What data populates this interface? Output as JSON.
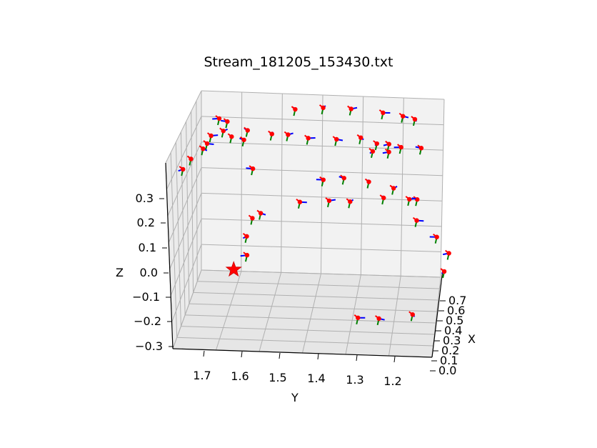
{
  "chart_data": {
    "type": "scatter",
    "projection": "3d",
    "title": "Stream_181205_153430.txt",
    "xlabel": "X",
    "ylabel": "Y",
    "zlabel": "Z",
    "x_ticks": [
      "0.0",
      "0.1",
      "0.2",
      "0.3",
      "0.4",
      "0.5",
      "0.6",
      "0.7"
    ],
    "y_ticks": [
      "1.7",
      "1.6",
      "1.5",
      "1.4",
      "1.3",
      "1.2"
    ],
    "z_ticks": [
      "0.3",
      "0.2",
      "0.1",
      "0.0",
      "−0.1",
      "−0.2",
      "−0.3"
    ],
    "xlim": [
      0.0,
      0.78
    ],
    "ylim": [
      1.15,
      1.77
    ],
    "zlim": [
      -0.3,
      0.38
    ],
    "grid": true,
    "colors": {
      "point": "#ff0000",
      "axis_x": "#ff0000",
      "axis_y": "#008000",
      "axis_z": "#0000ff",
      "start_marker": "#ff0000",
      "grid": "#b0b0b0",
      "pane": "#f2f2f2"
    },
    "start_marker": {
      "symbol": "star",
      "x": 0.0,
      "y": 1.62,
      "z": 0.0
    },
    "points": [
      {
        "x": 0.05,
        "y": 1.33,
        "z": -0.18
      },
      {
        "x": 0.05,
        "y": 1.28,
        "z": -0.18
      },
      {
        "x": 0.05,
        "y": 1.2,
        "z": -0.16
      },
      {
        "x": 0.2,
        "y": 1.13,
        "z": -0.05
      },
      {
        "x": 0.2,
        "y": 1.12,
        "z": 0.02
      },
      {
        "x": 0.2,
        "y": 1.15,
        "z": 0.08
      },
      {
        "x": 0.25,
        "y": 1.2,
        "z": 0.2
      },
      {
        "x": 0.25,
        "y": 1.28,
        "z": 0.2
      },
      {
        "x": 0.25,
        "y": 1.36,
        "z": 0.18
      },
      {
        "x": 0.25,
        "y": 1.41,
        "z": 0.18
      },
      {
        "x": 0.25,
        "y": 1.48,
        "z": 0.17
      },
      {
        "x": 0.2,
        "y": 1.57,
        "z": 0.14
      },
      {
        "x": 0.2,
        "y": 1.59,
        "z": 0.12
      },
      {
        "x": 0.15,
        "y": 1.6,
        "z": 0.07
      },
      {
        "x": 0.15,
        "y": 1.6,
        "z": 0.0
      },
      {
        "x": 0.35,
        "y": 1.6,
        "z": 0.25
      },
      {
        "x": 0.45,
        "y": 1.63,
        "z": 0.32
      },
      {
        "x": 0.45,
        "y": 1.66,
        "z": 0.33
      },
      {
        "x": 0.45,
        "y": 1.68,
        "z": 0.35
      },
      {
        "x": 0.45,
        "y": 1.71,
        "z": 0.33
      },
      {
        "x": 0.45,
        "y": 1.72,
        "z": 0.3
      },
      {
        "x": 0.45,
        "y": 1.73,
        "z": 0.28
      },
      {
        "x": 0.45,
        "y": 1.76,
        "z": 0.24
      },
      {
        "x": 0.45,
        "y": 1.78,
        "z": 0.2
      },
      {
        "x": 0.55,
        "y": 1.7,
        "z": 0.36
      },
      {
        "x": 0.55,
        "y": 1.68,
        "z": 0.35
      },
      {
        "x": 0.55,
        "y": 1.63,
        "z": 0.32
      },
      {
        "x": 0.55,
        "y": 1.57,
        "z": 0.31
      },
      {
        "x": 0.55,
        "y": 1.53,
        "z": 0.31
      },
      {
        "x": 0.55,
        "y": 1.48,
        "z": 0.3
      },
      {
        "x": 0.55,
        "y": 1.41,
        "z": 0.3
      },
      {
        "x": 0.55,
        "y": 1.35,
        "z": 0.31
      },
      {
        "x": 0.55,
        "y": 1.31,
        "z": 0.29
      },
      {
        "x": 0.55,
        "y": 1.28,
        "z": 0.29
      },
      {
        "x": 0.55,
        "y": 1.25,
        "z": 0.28
      },
      {
        "x": 0.55,
        "y": 1.2,
        "z": 0.28
      },
      {
        "x": 0.65,
        "y": 1.52,
        "z": 0.37
      },
      {
        "x": 0.65,
        "y": 1.45,
        "z": 0.38
      },
      {
        "x": 0.65,
        "y": 1.38,
        "z": 0.38
      },
      {
        "x": 0.65,
        "y": 1.3,
        "z": 0.37
      },
      {
        "x": 0.65,
        "y": 1.25,
        "z": 0.36
      },
      {
        "x": 0.65,
        "y": 1.22,
        "z": 0.35
      },
      {
        "x": 0.55,
        "y": 1.32,
        "z": 0.26
      },
      {
        "x": 0.55,
        "y": 1.28,
        "z": 0.26
      },
      {
        "x": 0.35,
        "y": 1.43,
        "z": 0.22
      },
      {
        "x": 0.35,
        "y": 1.38,
        "z": 0.23
      },
      {
        "x": 0.35,
        "y": 1.32,
        "z": 0.22
      },
      {
        "x": 0.35,
        "y": 1.26,
        "z": 0.2
      },
      {
        "x": 0.3,
        "y": 1.22,
        "z": 0.18
      },
      {
        "x": 0.25,
        "y": 1.2,
        "z": 0.12
      }
    ]
  }
}
